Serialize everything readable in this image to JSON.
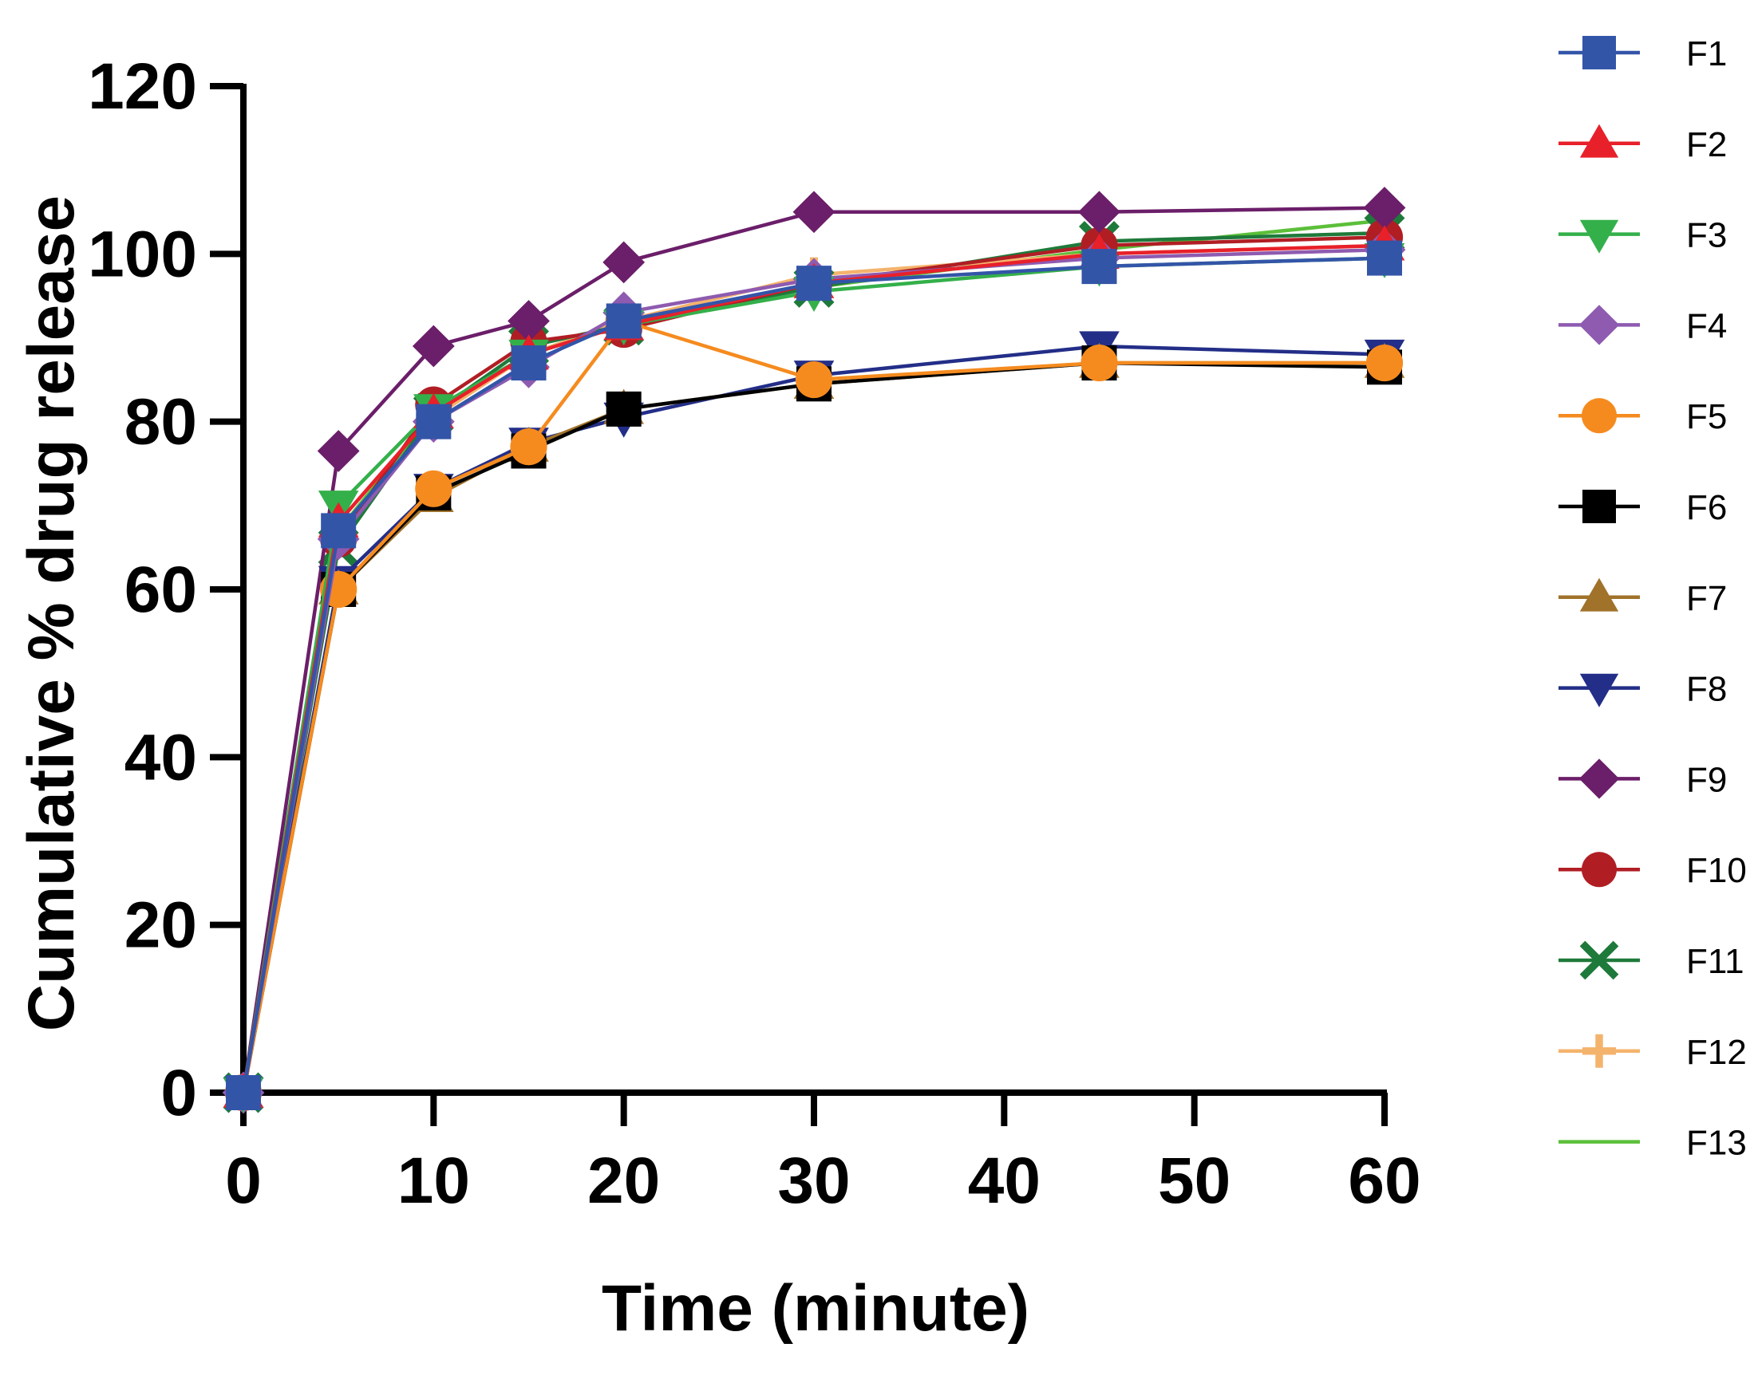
{
  "chart_data": {
    "type": "line",
    "title": "",
    "xlabel": "Time (minute)",
    "ylabel": "Cumulative % drug release",
    "xlim": [
      0,
      60
    ],
    "ylim": [
      0,
      120
    ],
    "xticks": [
      0,
      10,
      20,
      30,
      40,
      50,
      60
    ],
    "yticks": [
      0,
      20,
      40,
      60,
      80,
      100,
      120
    ],
    "x": [
      0,
      5,
      10,
      15,
      20,
      30,
      45,
      60
    ],
    "grid": false,
    "legend_position": "right",
    "series": [
      {
        "name": "F1",
        "color": "#3355a8",
        "marker": "square",
        "values": [
          0,
          67,
          80,
          87,
          92,
          96.5,
          98.5,
          99.5
        ]
      },
      {
        "name": "F2",
        "color": "#e8202a",
        "marker": "triangle-up",
        "values": [
          0,
          68,
          81,
          88,
          91.5,
          96.5,
          100,
          101
        ]
      },
      {
        "name": "F3",
        "color": "#34b04a",
        "marker": "triangle-down",
        "values": [
          0,
          70,
          81.5,
          88,
          91.5,
          95.5,
          98.5,
          99.5
        ]
      },
      {
        "name": "F4",
        "color": "#8e5bb0",
        "marker": "diamond",
        "values": [
          0,
          66,
          80,
          86.5,
          93,
          97,
          99.5,
          100.5
        ]
      },
      {
        "name": "F5",
        "color": "#f58b1f",
        "marker": "circle",
        "values": [
          0,
          60,
          72,
          77,
          92,
          85,
          87,
          87
        ]
      },
      {
        "name": "F6",
        "color": "#000000",
        "marker": "square",
        "values": [
          0,
          60,
          71.5,
          76.5,
          81.5,
          84.5,
          87,
          86.5
        ]
      },
      {
        "name": "F7",
        "color": "#a0722a",
        "marker": "triangle-up",
        "values": [
          0,
          60,
          71,
          77,
          81.5,
          84.5,
          87,
          87
        ]
      },
      {
        "name": "F8",
        "color": "#232e88",
        "marker": "triangle-down",
        "values": [
          0,
          61,
          72,
          77.5,
          80.5,
          85.5,
          89,
          88
        ]
      },
      {
        "name": "F9",
        "color": "#6b1e69",
        "marker": "diamond",
        "values": [
          0,
          76.5,
          89,
          92,
          99,
          105,
          105,
          105.5
        ]
      },
      {
        "name": "F10",
        "color": "#b01e24",
        "marker": "circle",
        "values": [
          0,
          66,
          82,
          89.5,
          91,
          96.5,
          101,
          102
        ]
      },
      {
        "name": "F11",
        "color": "#1e7a3a",
        "marker": "x",
        "values": [
          0,
          65,
          81,
          89,
          91.5,
          96,
          101.5,
          102.5
        ]
      },
      {
        "name": "F12",
        "color": "#f4b36c",
        "marker": "plus",
        "values": [
          0,
          66,
          80.5,
          88,
          92,
          97.5,
          100,
          101
        ]
      },
      {
        "name": "F13",
        "color": "#5cbf3a",
        "marker": "none",
        "values": [
          0,
          67,
          81,
          88,
          92,
          96,
          100.5,
          104
        ]
      }
    ]
  }
}
